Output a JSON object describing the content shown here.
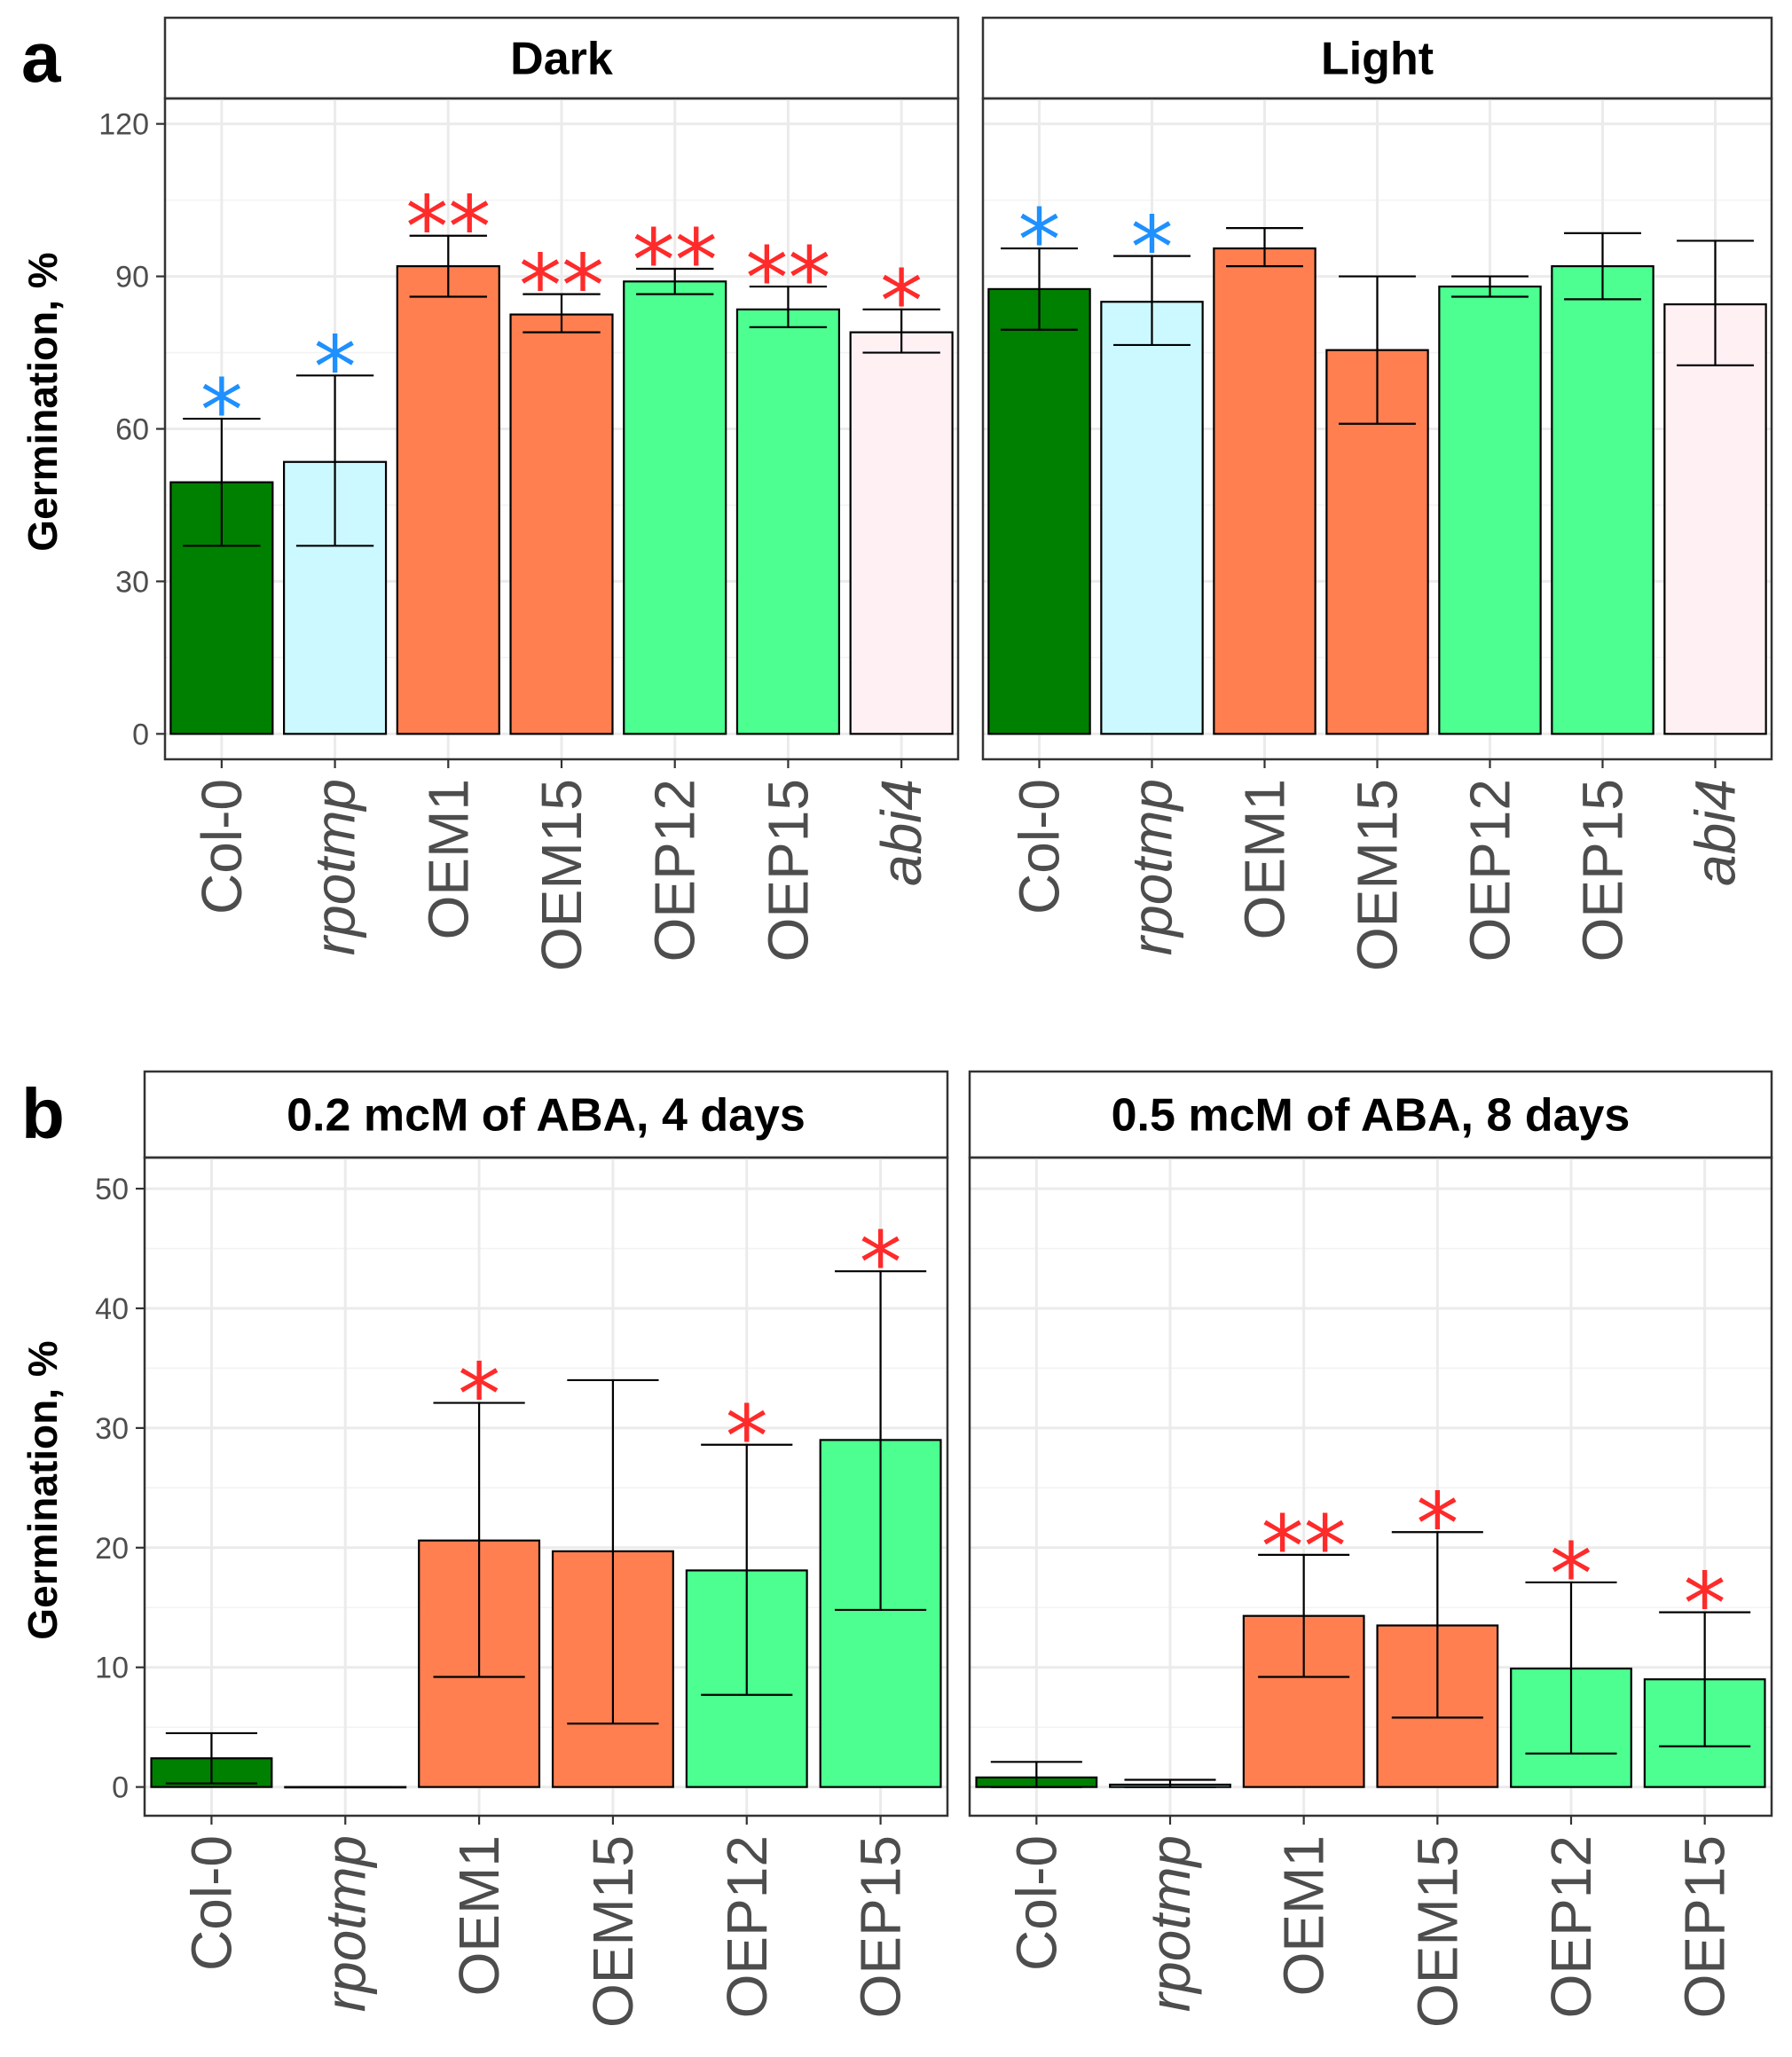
{
  "figure": {
    "panel_labels": [
      "a",
      "b"
    ]
  },
  "colors": {
    "Col-0": "#008000",
    "rpotmp": "#ccf9ff",
    "OEM1": "#ff7f50",
    "OEM15": "#ff7f50",
    "OEP12": "#4cff90",
    "OEP15": "#4cff90",
    "abi4": "#fff0f4",
    "sig_blue": "#1e90ff",
    "sig_red": "#ff2a2a"
  },
  "chart_data": [
    {
      "type": "bar",
      "panel": "a",
      "title": "Dark",
      "ylabel": "Germination, %",
      "ylim": [
        -5,
        125
      ],
      "yticks": [
        0,
        30,
        60,
        90,
        120
      ],
      "categories": [
        "Col-0",
        "rpotmp",
        "OEM1",
        "OEM15",
        "OEP12",
        "OEP15",
        "abi4"
      ],
      "italic_categories": [
        "rpotmp",
        "abi4"
      ],
      "values": [
        49.5,
        53.5,
        92,
        82.5,
        89,
        83.5,
        79
      ],
      "error_low": [
        37,
        37,
        86,
        79,
        86.5,
        80,
        75
      ],
      "error_high": [
        62,
        70.5,
        98,
        86.5,
        91.5,
        88,
        83.5
      ],
      "significance": [
        "*",
        "*",
        "**",
        "**",
        "**",
        "**",
        "*"
      ],
      "significance_color": [
        "blue",
        "blue",
        "red",
        "red",
        "red",
        "red",
        "red"
      ]
    },
    {
      "type": "bar",
      "panel": "a",
      "title": "Light",
      "ylabel": "",
      "ylim": [
        -5,
        125
      ],
      "yticks": [
        0,
        30,
        60,
        90,
        120
      ],
      "categories": [
        "Col-0",
        "rpotmp",
        "OEM1",
        "OEM15",
        "OEP12",
        "OEP15",
        "abi4"
      ],
      "italic_categories": [
        "rpotmp",
        "abi4"
      ],
      "values": [
        87.5,
        85,
        95.5,
        75.5,
        88,
        92,
        84.5
      ],
      "error_low": [
        79.5,
        76.5,
        92,
        61,
        86,
        85.5,
        72.5
      ],
      "error_high": [
        95.5,
        94,
        99.5,
        90,
        90,
        98.5,
        97
      ],
      "significance": [
        "*",
        "*",
        "",
        "",
        "",
        "",
        ""
      ],
      "significance_color": [
        "blue",
        "blue",
        "",
        "",
        "",
        "",
        ""
      ]
    },
    {
      "type": "bar",
      "panel": "b",
      "title": "0.2 mcM of ABA, 4 days",
      "ylabel": "Germination, %",
      "ylim": [
        -2.4,
        52.6
      ],
      "yticks": [
        0,
        10,
        20,
        30,
        40,
        50
      ],
      "categories": [
        "Col-0",
        "rpotmp",
        "OEM1",
        "OEM15",
        "OEP12",
        "OEP15"
      ],
      "italic_categories": [
        "rpotmp"
      ],
      "values": [
        2.4,
        0,
        20.6,
        19.7,
        18.1,
        29
      ],
      "error_low": [
        0.3,
        0,
        9.2,
        5.3,
        7.7,
        14.8
      ],
      "error_high": [
        4.5,
        0,
        32.1,
        34,
        28.6,
        43.1
      ],
      "significance": [
        "",
        "",
        "*",
        "",
        "*",
        "*"
      ],
      "significance_color": [
        "",
        "",
        "red",
        "",
        "red",
        "red"
      ]
    },
    {
      "type": "bar",
      "panel": "b",
      "title": "0.5 mcM of ABA, 8 days",
      "ylabel": "",
      "ylim": [
        -2.4,
        52.6
      ],
      "yticks": [
        0,
        10,
        20,
        30,
        40,
        50
      ],
      "categories": [
        "Col-0",
        "rpotmp",
        "OEM1",
        "OEM15",
        "OEP12",
        "OEP15"
      ],
      "italic_categories": [
        "rpotmp"
      ],
      "values": [
        0.8,
        0.2,
        14.3,
        13.5,
        9.9,
        9
      ],
      "error_low": [
        0,
        0,
        9.2,
        5.8,
        2.8,
        3.4
      ],
      "error_high": [
        2.1,
        0.6,
        19.4,
        21.3,
        17.1,
        14.6
      ],
      "significance": [
        "",
        "",
        "**",
        "*",
        "*",
        "*"
      ],
      "significance_color": [
        "",
        "",
        "red",
        "red",
        "red",
        "red"
      ]
    }
  ]
}
